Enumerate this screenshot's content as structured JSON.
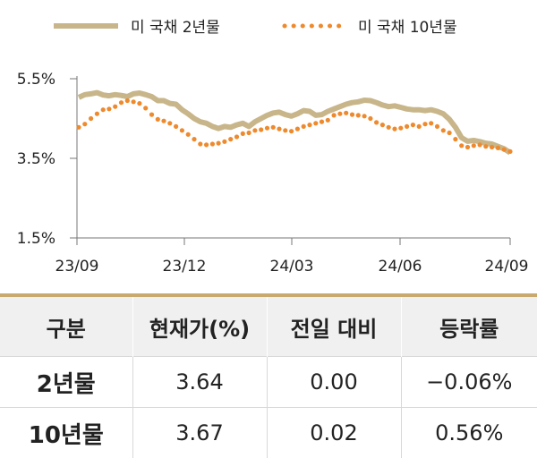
{
  "chart_data": {
    "type": "line",
    "ylim": [
      1.5,
      5.5
    ],
    "y_ticks": [
      "1.5%",
      "3.5%",
      "5.5%"
    ],
    "x_ticks": [
      "23/09",
      "23/12",
      "24/03",
      "24/06",
      "24/09"
    ],
    "grid": false,
    "legend_placement": "top",
    "series": [
      {
        "name": "미 국채 2년물",
        "style": "solid",
        "color": "#c8b68a",
        "values": [
          5.03,
          5.1,
          5.12,
          5.15,
          5.09,
          5.07,
          5.1,
          5.08,
          5.05,
          5.12,
          5.14,
          5.1,
          5.05,
          4.95,
          4.95,
          4.88,
          4.86,
          4.72,
          4.62,
          4.5,
          4.42,
          4.38,
          4.3,
          4.25,
          4.3,
          4.28,
          4.34,
          4.38,
          4.3,
          4.42,
          4.5,
          4.58,
          4.64,
          4.66,
          4.6,
          4.56,
          4.62,
          4.7,
          4.68,
          4.58,
          4.6,
          4.68,
          4.74,
          4.8,
          4.86,
          4.9,
          4.92,
          4.96,
          4.95,
          4.9,
          4.84,
          4.8,
          4.82,
          4.78,
          4.74,
          4.72,
          4.72,
          4.7,
          4.72,
          4.68,
          4.62,
          4.48,
          4.28,
          4.02,
          3.93,
          3.95,
          3.92,
          3.88,
          3.86,
          3.8,
          3.74,
          3.64
        ]
      },
      {
        "name": "미 국채 10년물",
        "style": "dotted",
        "color": "#ee8a2e",
        "values": [
          4.28,
          4.36,
          4.5,
          4.62,
          4.72,
          4.74,
          4.8,
          4.9,
          4.95,
          4.92,
          4.88,
          4.76,
          4.6,
          4.48,
          4.44,
          4.38,
          4.3,
          4.2,
          4.1,
          3.98,
          3.86,
          3.84,
          3.86,
          3.88,
          3.92,
          3.98,
          4.04,
          4.12,
          4.14,
          4.2,
          4.22,
          4.26,
          4.28,
          4.24,
          4.2,
          4.18,
          4.24,
          4.3,
          4.34,
          4.38,
          4.42,
          4.46,
          4.58,
          4.62,
          4.64,
          4.6,
          4.58,
          4.56,
          4.5,
          4.4,
          4.34,
          4.28,
          4.24,
          4.26,
          4.3,
          4.34,
          4.3,
          4.36,
          4.38,
          4.3,
          4.2,
          4.14,
          3.98,
          3.82,
          3.78,
          3.82,
          3.84,
          3.8,
          3.78,
          3.76,
          3.72,
          3.67
        ]
      }
    ]
  },
  "table": {
    "headers": [
      "구분",
      "현재가(%)",
      "전일 대비",
      "등락률"
    ],
    "rows": [
      {
        "label": "2년물",
        "price": "3.64",
        "change": "0.00",
        "rate": "−0.06%"
      },
      {
        "label": "10년물",
        "price": "3.67",
        "change": "0.02",
        "rate": "0.56%"
      }
    ]
  }
}
